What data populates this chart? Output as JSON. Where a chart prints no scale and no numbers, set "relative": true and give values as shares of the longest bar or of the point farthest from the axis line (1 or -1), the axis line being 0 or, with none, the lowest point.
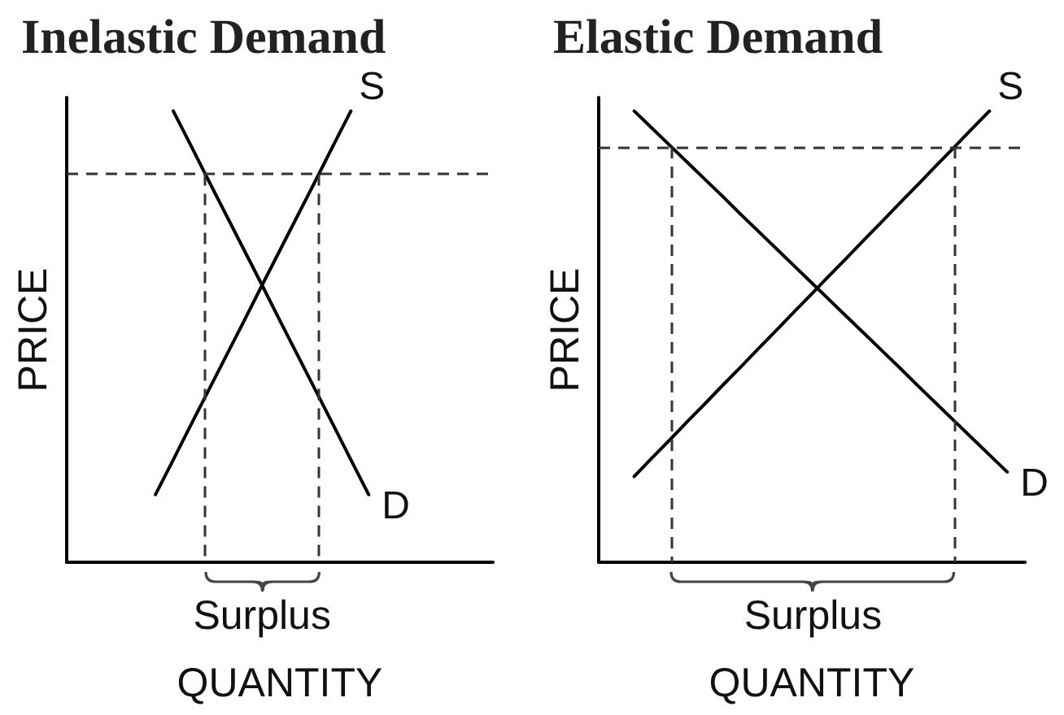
{
  "chart_data": [
    {
      "type": "line",
      "title": "Inelastic Demand",
      "xlabel": "QUANTITY",
      "ylabel": "PRICE",
      "relative": true,
      "marker": "none",
      "categories": [
        null,
        null,
        null,
        null,
        null,
        null,
        null,
        null,
        null,
        null,
        null,
        null,
        null,
        null,
        null,
        null,
        null,
        null,
        null,
        null,
        null,
        null,
        null,
        null,
        null
      ],
      "series": [
        {
          "name": "S",
          "color": "#000000",
          "values": [
            null,
            null,
            null,
            null,
            null,
            0.15,
            0.227,
            0.305,
            0.382,
            0.459,
            0.536,
            0.614,
            0.691,
            0.768,
            0.845,
            0.923,
            1,
            null,
            null,
            null,
            null,
            null,
            null,
            null,
            null
          ]
        },
        {
          "name": "D",
          "color": "#000000",
          "values": [
            null,
            null,
            null,
            null,
            null,
            null,
            1,
            0.923,
            0.845,
            0.768,
            0.691,
            0.614,
            0.536,
            0.459,
            0.382,
            0.305,
            0.227,
            0.15,
            null,
            null,
            null,
            null,
            null,
            null,
            null
          ]
        }
      ],
      "ref_lines": [
        {
          "axis": "y",
          "value": 0.86,
          "color": "#333333",
          "line_style": "dashed"
        }
      ],
      "annotations": [
        "Surplus"
      ]
    },
    {
      "type": "line",
      "title": "Elastic Demand",
      "xlabel": "QUANTITY",
      "ylabel": "PRICE",
      "relative": true,
      "marker": "none",
      "categories": [
        null,
        null,
        null,
        null,
        null,
        null,
        null,
        null,
        null,
        null,
        null,
        null,
        null,
        null,
        null,
        null,
        null,
        null,
        null,
        null,
        null,
        null,
        null,
        null,
        null
      ],
      "series": [
        {
          "name": "S",
          "color": "#000000",
          "values": [
            null,
            null,
            0.19,
            0.231,
            0.271,
            0.312,
            0.352,
            0.393,
            0.433,
            0.474,
            0.514,
            0.555,
            0.595,
            0.636,
            0.676,
            0.717,
            0.757,
            0.798,
            0.838,
            0.879,
            0.919,
            0.96,
            1,
            null,
            null
          ]
        },
        {
          "name": "D",
          "color": "#000000",
          "values": [
            null,
            null,
            1,
            0.962,
            0.924,
            0.886,
            0.848,
            0.81,
            0.771,
            0.733,
            0.695,
            0.657,
            0.619,
            0.581,
            0.543,
            0.505,
            0.467,
            0.429,
            0.39,
            0.352,
            0.314,
            0.276,
            0.238,
            0.2,
            null
          ]
        }
      ],
      "ref_lines": [
        {
          "axis": "y",
          "value": 0.92,
          "color": "#333333",
          "line_style": "dashed"
        }
      ],
      "annotations": [
        "Surplus"
      ]
    }
  ]
}
